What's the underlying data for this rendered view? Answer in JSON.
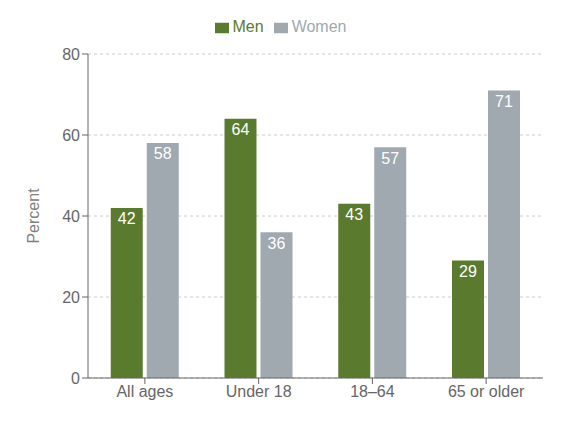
{
  "chart_data": {
    "type": "bar",
    "categories": [
      "All ages",
      "Under 18",
      "18–64",
      "65 or older"
    ],
    "series": [
      {
        "name": "Men",
        "color": "#5a7a2e",
        "values": [
          42,
          64,
          43,
          29
        ]
      },
      {
        "name": "Women",
        "color": "#a0a8b0",
        "values": [
          58,
          36,
          57,
          71
        ]
      }
    ],
    "ylabel": "Percent",
    "ylim": [
      0,
      80
    ],
    "yticks": [
      0,
      20,
      40,
      60,
      80
    ],
    "grid": true,
    "legend": "top",
    "data_labels": true
  }
}
